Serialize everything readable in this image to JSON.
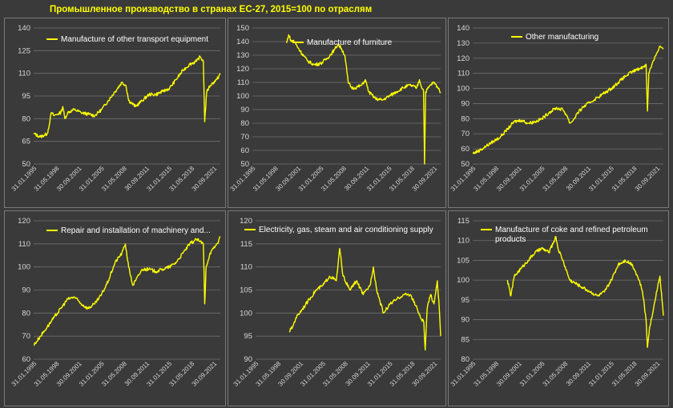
{
  "page": {
    "title": "Промышленное производство в странах ЕС-27, 2015=100 по отраслям"
  },
  "colors": {
    "background": "#3a3a3a",
    "line": "#ffff00",
    "title": "#ffff00",
    "grid": "#6f6f6f",
    "text": "#d8d8d8"
  },
  "chart_data": [
    {
      "type": "line",
      "legend": "Manufacture of other transport equipment",
      "x_ticks": [
        "31.01.1995",
        "31.05.1998",
        "30.09.2001",
        "31.01.2005",
        "31.05.2008",
        "30.09.2011",
        "31.01.2015",
        "31.05.2018",
        "30.09.2021"
      ],
      "y_ticks": [
        50,
        65,
        80,
        95,
        110,
        125,
        140
      ],
      "ylim": [
        50,
        140
      ],
      "x_range": [
        1995.0,
        2022.5
      ],
      "points": [
        [
          1995.0,
          70
        ],
        [
          1996.0,
          68
        ],
        [
          1997.0,
          70
        ],
        [
          1997.3,
          76
        ],
        [
          1997.6,
          84
        ],
        [
          1998.0,
          82
        ],
        [
          1998.5,
          83
        ],
        [
          1999.0,
          84
        ],
        [
          1999.3,
          88
        ],
        [
          1999.6,
          80
        ],
        [
          2000.0,
          84
        ],
        [
          2001.0,
          86
        ],
        [
          2002.0,
          84
        ],
        [
          2003.0,
          83
        ],
        [
          2004.0,
          82
        ],
        [
          2005.0,
          86
        ],
        [
          2006.0,
          92
        ],
        [
          2007.0,
          98
        ],
        [
          2008.0,
          104
        ],
        [
          2008.6,
          102
        ],
        [
          2009.0,
          92
        ],
        [
          2010.0,
          88
        ],
        [
          2011.0,
          92
        ],
        [
          2012.0,
          96
        ],
        [
          2013.0,
          96
        ],
        [
          2014.0,
          98
        ],
        [
          2015.0,
          100
        ],
        [
          2016.0,
          106
        ],
        [
          2017.0,
          112
        ],
        [
          2018.0,
          116
        ],
        [
          2019.0,
          118
        ],
        [
          2019.5,
          121
        ],
        [
          2020.0,
          118
        ],
        [
          2020.2,
          78
        ],
        [
          2020.5,
          98
        ],
        [
          2021.0,
          102
        ],
        [
          2021.5,
          104
        ],
        [
          2022.0,
          106
        ],
        [
          2022.5,
          110
        ]
      ]
    },
    {
      "type": "line",
      "legend": "Manufacture of furniture",
      "x_ticks": [
        "31.01.1995",
        "31.05.1998",
        "30.09.2001",
        "31.01.2005",
        "31.05.2008",
        "30.09.2011",
        "31.01.2015",
        "31.05.2018",
        "30.09.2021"
      ],
      "y_ticks": [
        50,
        60,
        70,
        80,
        90,
        100,
        110,
        120,
        130,
        140,
        150
      ],
      "ylim": [
        50,
        150
      ],
      "x_range": [
        1995.0,
        2022.5
      ],
      "points": [
        [
          2000.0,
          139
        ],
        [
          2000.3,
          145
        ],
        [
          2000.7,
          140
        ],
        [
          2001.0,
          141
        ],
        [
          2002.0,
          133
        ],
        [
          2003.0,
          126
        ],
        [
          2004.0,
          123
        ],
        [
          2005.0,
          124
        ],
        [
          2006.0,
          128
        ],
        [
          2007.0,
          134
        ],
        [
          2007.5,
          138
        ],
        [
          2008.0,
          135
        ],
        [
          2008.5,
          130
        ],
        [
          2009.0,
          110
        ],
        [
          2009.5,
          106
        ],
        [
          2010.0,
          106
        ],
        [
          2011.0,
          108
        ],
        [
          2011.5,
          112
        ],
        [
          2012.0,
          103
        ],
        [
          2013.0,
          98
        ],
        [
          2014.0,
          97
        ],
        [
          2015.0,
          100
        ],
        [
          2016.0,
          103
        ],
        [
          2017.0,
          106
        ],
        [
          2018.0,
          108
        ],
        [
          2019.0,
          106
        ],
        [
          2019.4,
          112
        ],
        [
          2019.6,
          108
        ],
        [
          2020.0,
          104
        ],
        [
          2020.15,
          50
        ],
        [
          2020.3,
          103
        ],
        [
          2021.0,
          108
        ],
        [
          2021.5,
          110
        ],
        [
          2022.0,
          107
        ],
        [
          2022.5,
          103
        ]
      ]
    },
    {
      "type": "line",
      "legend": "Other manufacturing",
      "x_ticks": [
        "31.01.1995",
        "31.05.1998",
        "30.09.2001",
        "31.01.2005",
        "31.05.2008",
        "30.09.2011",
        "31.01.2015",
        "31.05.2018",
        "30.09.2021"
      ],
      "y_ticks": [
        50,
        60,
        70,
        80,
        90,
        100,
        110,
        120,
        130,
        140
      ],
      "ylim": [
        50,
        140
      ],
      "x_range": [
        1995.0,
        2022.5
      ],
      "points": [
        [
          1995.0,
          57
        ],
        [
          1996.0,
          59
        ],
        [
          1997.0,
          62
        ],
        [
          1998.0,
          65
        ],
        [
          1999.0,
          68
        ],
        [
          2000.0,
          73
        ],
        [
          2001.0,
          78
        ],
        [
          2002.0,
          79
        ],
        [
          2003.0,
          77
        ],
        [
          2004.0,
          78
        ],
        [
          2005.0,
          80
        ],
        [
          2006.0,
          84
        ],
        [
          2007.0,
          87
        ],
        [
          2008.0,
          86
        ],
        [
          2008.6,
          82
        ],
        [
          2009.0,
          77
        ],
        [
          2009.5,
          79
        ],
        [
          2010.0,
          83
        ],
        [
          2011.0,
          88
        ],
        [
          2012.0,
          91
        ],
        [
          2013.0,
          94
        ],
        [
          2014.0,
          97
        ],
        [
          2015.0,
          100
        ],
        [
          2016.0,
          104
        ],
        [
          2017.0,
          108
        ],
        [
          2018.0,
          111
        ],
        [
          2019.0,
          113
        ],
        [
          2019.5,
          114
        ],
        [
          2020.0,
          116
        ],
        [
          2020.2,
          85
        ],
        [
          2020.4,
          110
        ],
        [
          2021.0,
          118
        ],
        [
          2021.5,
          123
        ],
        [
          2022.0,
          128
        ],
        [
          2022.5,
          126
        ]
      ]
    },
    {
      "type": "line",
      "legend": "Repair and installation of machinery and...",
      "x_ticks": [
        "31.01.1995",
        "31.05.1998",
        "30.09.2001",
        "31.01.2005",
        "31.05.2008",
        "30.09.2011",
        "31.01.2015",
        "31.05.2018",
        "30.09.2021"
      ],
      "y_ticks": [
        60,
        70,
        80,
        90,
        100,
        110,
        120
      ],
      "ylim": [
        60,
        120
      ],
      "x_range": [
        1995.0,
        2022.5
      ],
      "points": [
        [
          1995.0,
          66
        ],
        [
          1996.0,
          70
        ],
        [
          1997.0,
          74
        ],
        [
          1998.0,
          78
        ],
        [
          1999.0,
          82
        ],
        [
          2000.0,
          86
        ],
        [
          2001.0,
          87
        ],
        [
          2002.0,
          84
        ],
        [
          2003.0,
          82
        ],
        [
          2004.0,
          84
        ],
        [
          2005.0,
          88
        ],
        [
          2006.0,
          94
        ],
        [
          2007.0,
          102
        ],
        [
          2008.0,
          106
        ],
        [
          2008.5,
          110
        ],
        [
          2009.0,
          100
        ],
        [
          2009.6,
          92
        ],
        [
          2010.0,
          94
        ],
        [
          2011.0,
          99
        ],
        [
          2012.0,
          99
        ],
        [
          2013.0,
          98
        ],
        [
          2014.0,
          99
        ],
        [
          2015.0,
          100
        ],
        [
          2016.0,
          102
        ],
        [
          2017.0,
          106
        ],
        [
          2018.0,
          110
        ],
        [
          2019.0,
          112
        ],
        [
          2019.5,
          111
        ],
        [
          2020.0,
          110
        ],
        [
          2020.2,
          84
        ],
        [
          2020.4,
          100
        ],
        [
          2021.0,
          106
        ],
        [
          2021.5,
          108
        ],
        [
          2022.0,
          110
        ],
        [
          2022.5,
          113
        ]
      ]
    },
    {
      "type": "line",
      "legend": "Electricity, gas, steam and air conditioning supply",
      "x_ticks": [
        "31.01.1995",
        "31.05.1998",
        "30.09.2001",
        "31.01.2005",
        "31.05.2008",
        "30.09.2011",
        "31.01.2015",
        "31.05.2018",
        "30.09.2021"
      ],
      "y_ticks": [
        90,
        95,
        100,
        105,
        110,
        115,
        120
      ],
      "ylim": [
        90,
        120
      ],
      "x_range": [
        1995.0,
        2022.5
      ],
      "points": [
        [
          2000.0,
          96
        ],
        [
          2000.5,
          97
        ],
        [
          2001.0,
          99
        ],
        [
          2002.0,
          101
        ],
        [
          2003.0,
          103
        ],
        [
          2004.0,
          105
        ],
        [
          2005.0,
          106
        ],
        [
          2006.0,
          108
        ],
        [
          2007.0,
          107
        ],
        [
          2007.5,
          114
        ],
        [
          2008.0,
          108
        ],
        [
          2009.0,
          105
        ],
        [
          2010.0,
          107
        ],
        [
          2011.0,
          104
        ],
        [
          2012.0,
          106
        ],
        [
          2012.5,
          110
        ],
        [
          2013.0,
          105
        ],
        [
          2014.0,
          100
        ],
        [
          2015.0,
          102
        ],
        [
          2016.0,
          103
        ],
        [
          2017.0,
          104
        ],
        [
          2018.0,
          104
        ],
        [
          2019.0,
          101
        ],
        [
          2019.5,
          99
        ],
        [
          2020.0,
          98
        ],
        [
          2020.2,
          92
        ],
        [
          2020.5,
          101
        ],
        [
          2021.0,
          104
        ],
        [
          2021.5,
          102
        ],
        [
          2022.0,
          107
        ],
        [
          2022.3,
          101
        ],
        [
          2022.5,
          95
        ]
      ]
    },
    {
      "type": "line",
      "legend": "Manufacture of coke and refined petroleum products",
      "x_ticks": [
        "31.01.1995",
        "31.05.1998",
        "30.09.2001",
        "31.01.2005",
        "31.05.2008",
        "30.09.2011",
        "31.01.2015",
        "31.05.2018",
        "30.09.2021"
      ],
      "y_ticks": [
        80,
        85,
        90,
        95,
        100,
        105,
        110,
        115
      ],
      "ylim": [
        80,
        115
      ],
      "x_range": [
        1995.0,
        2022.5
      ],
      "points": [
        [
          2000.0,
          100
        ],
        [
          2000.5,
          96
        ],
        [
          2001.0,
          101
        ],
        [
          2002.0,
          103
        ],
        [
          2003.0,
          105
        ],
        [
          2004.0,
          107
        ],
        [
          2005.0,
          108
        ],
        [
          2006.0,
          107
        ],
        [
          2007.0,
          111
        ],
        [
          2007.3,
          108
        ],
        [
          2008.0,
          105
        ],
        [
          2009.0,
          100
        ],
        [
          2010.0,
          99
        ],
        [
          2011.0,
          98
        ],
        [
          2012.0,
          97
        ],
        [
          2013.0,
          96
        ],
        [
          2014.0,
          97
        ],
        [
          2015.0,
          100
        ],
        [
          2016.0,
          104
        ],
        [
          2017.0,
          105
        ],
        [
          2018.0,
          104
        ],
        [
          2018.5,
          102
        ],
        [
          2019.0,
          100
        ],
        [
          2019.5,
          97
        ],
        [
          2020.0,
          90
        ],
        [
          2020.2,
          83
        ],
        [
          2020.5,
          88
        ],
        [
          2021.0,
          92
        ],
        [
          2021.5,
          97
        ],
        [
          2022.0,
          101
        ],
        [
          2022.3,
          95
        ],
        [
          2022.5,
          91
        ]
      ]
    }
  ]
}
